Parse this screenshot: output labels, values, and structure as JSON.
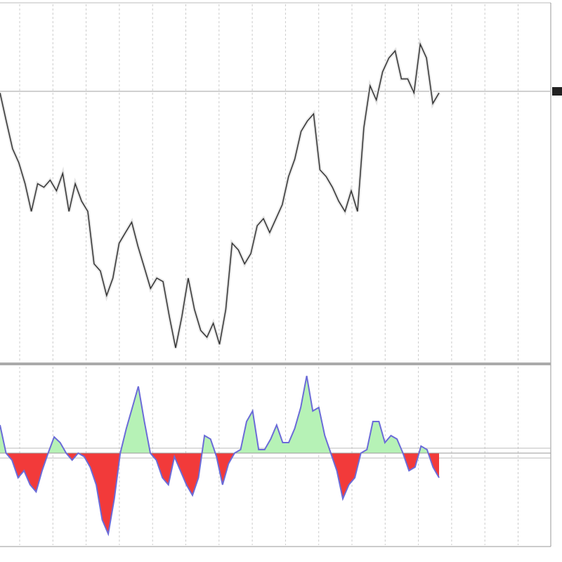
{
  "chart_data": [
    {
      "type": "line",
      "color": "#333333",
      "values": [
        75.5,
        67.6,
        59.8,
        55.9,
        50,
        42.2,
        50,
        49,
        51,
        48,
        52.9,
        42.2,
        50,
        45.1,
        42.2,
        27.5,
        25.5,
        18.6,
        23.5,
        33.3,
        36.3,
        39.2,
        32.4,
        26.5,
        20.6,
        23.5,
        22.5,
        12.7,
        3.9,
        12.7,
        23.5,
        14.7,
        8.8,
        6.9,
        10.8,
        4.9,
        14.7,
        33.3,
        31.4,
        27.5,
        30.4,
        38.2,
        40.2,
        36.3,
        40.2,
        44.1,
        52,
        56.9,
        64.7,
        67.6,
        69.6,
        53.9,
        52,
        49,
        45.1,
        42.2,
        48,
        42.2,
        65.7,
        77.5,
        73.5,
        81.4,
        85.3,
        87.3,
        79.4,
        79.4,
        75.5,
        89.2,
        85.3,
        72.5,
        75.5
      ],
      "ylim": [
        0,
        100
      ]
    },
    {
      "type": "area",
      "color": "#6b6bd8",
      "positive_color": "#b6f2b6",
      "negative_color": "#f23a3a",
      "values": [
        4,
        0,
        -1,
        -3.5,
        -2.5,
        -4.5,
        -5.5,
        -2.5,
        0,
        2.3,
        1.5,
        0,
        -1,
        0,
        -0.5,
        -2,
        -4.5,
        -9.5,
        -11.5,
        -6.5,
        0,
        3.5,
        6.5,
        9.5,
        4.5,
        0,
        -1,
        -3.5,
        -4.5,
        -0.5,
        -2.5,
        -4.5,
        -6,
        -3.5,
        2.5,
        2,
        -0.5,
        -4.5,
        -1.5,
        0,
        0.5,
        4.5,
        6,
        0.5,
        0.5,
        2,
        4,
        1.5,
        1.5,
        3.5,
        6.5,
        11,
        6,
        6.5,
        2.5,
        0,
        -2.5,
        -6.5,
        -4.5,
        -3.5,
        0,
        0.5,
        4.5,
        4.5,
        1.5,
        2.5,
        2,
        0,
        -2.5,
        -2,
        1,
        0.5,
        -2,
        -3.5
      ],
      "ylim": [
        -13.3,
        12.3
      ]
    }
  ]
}
